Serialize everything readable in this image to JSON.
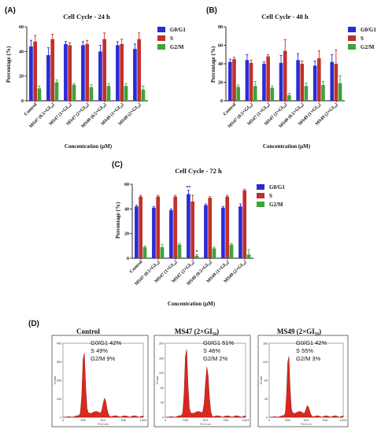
{
  "panel_labels": [
    "(A)",
    "(B)",
    "(C)",
    "(D)"
  ],
  "colors": {
    "G0/G1": "#2b2bd6",
    "S": "#c0312b",
    "G2/M": "#3fa23a",
    "flow_fill": "#d9281f"
  },
  "chart_data": [
    {
      "type": "bar",
      "panel": "(A)",
      "title": "Cell Cycle - 24 h",
      "xlabel": "Concentration (μM)",
      "ylabel": "Percentage (%)",
      "ylim": [
        0,
        60
      ],
      "yticks": [
        0,
        20,
        40,
        60
      ],
      "legend_position": "right",
      "categories": [
        "Control",
        "MS47 (0.5×GI₅₀)",
        "MS47 (1×GI₅₀)",
        "MS47 (2×GI₅₀)",
        "MS49 (0.5×GI₅₀)",
        "MS49 (1×GI₅₀)",
        "MS49 (2×GI₅₀)"
      ],
      "series": [
        {
          "name": "G0/G1",
          "values": [
            44,
            37,
            46,
            45,
            40,
            45,
            42
          ],
          "errors": [
            5,
            6,
            2,
            3,
            5,
            3,
            4
          ]
        },
        {
          "name": "S",
          "values": [
            48,
            50,
            45,
            46,
            50,
            46,
            50
          ],
          "errors": [
            5,
            4,
            2,
            3,
            5,
            4,
            5
          ]
        },
        {
          "name": "G2/M",
          "values": [
            10,
            15,
            13,
            11,
            12,
            12,
            9
          ],
          "errors": [
            2,
            2,
            1,
            2,
            2,
            2,
            3
          ]
        }
      ]
    },
    {
      "type": "bar",
      "panel": "(B)",
      "title": "Cell Cycle - 48 h",
      "xlabel": "Concentration (μM)",
      "ylabel": "Percentage (%)",
      "ylim": [
        0,
        80
      ],
      "yticks": [
        0,
        20,
        40,
        60,
        80
      ],
      "legend_position": "right",
      "categories": [
        "Control",
        "MS47 (0.5×GI₅₀)",
        "MS47 (1×GI₅₀)",
        "MS47 (2×GI₅₀)",
        "MS49 (0.5×GI₅₀)",
        "MS49 (1×GI₅₀)",
        "MS49 (2×GI₅₀)"
      ],
      "series": [
        {
          "name": "G0/G1",
          "values": [
            42,
            44,
            40,
            41,
            44,
            38,
            42
          ],
          "errors": [
            3,
            6,
            2,
            8,
            7,
            5,
            8
          ]
        },
        {
          "name": "S",
          "values": [
            45,
            41,
            48,
            54,
            40,
            46,
            40
          ],
          "errors": [
            2,
            3,
            2,
            12,
            3,
            8,
            15
          ]
        },
        {
          "name": "G2/M",
          "values": [
            15,
            16,
            14,
            6,
            16,
            17,
            19
          ],
          "errors": [
            2,
            5,
            2,
            2,
            3,
            4,
            8
          ]
        }
      ]
    },
    {
      "type": "bar",
      "panel": "(C)",
      "title": "Cell Cycle - 72 h",
      "xlabel": "Concentration (μM)",
      "ylabel": "Percentage (%)",
      "ylim": [
        0,
        60
      ],
      "yticks": [
        0,
        20,
        40,
        60
      ],
      "legend_position": "right",
      "categories": [
        "Control",
        "MS47 (0.5×GI₅₀)",
        "MS47 (1×GI₅₀)",
        "MS47 (2×GI₅₀)",
        "MS49 (0.5×GI₅₀)",
        "MS49 (1×GI₅₀)",
        "MS49 (2×GI₅₀)"
      ],
      "series": [
        {
          "name": "G0/G1",
          "values": [
            42,
            41,
            39,
            52,
            43,
            41,
            42
          ],
          "errors": [
            1,
            1,
            1,
            3,
            1,
            1,
            2
          ]
        },
        {
          "name": "S",
          "values": [
            50,
            50,
            50,
            46,
            49,
            50,
            55
          ],
          "errors": [
            1,
            1,
            1,
            5,
            1,
            1,
            1
          ]
        },
        {
          "name": "G2/M",
          "values": [
            9,
            9,
            11,
            2,
            8,
            11,
            3
          ],
          "errors": [
            1,
            2,
            1,
            1,
            1,
            1,
            4
          ]
        }
      ],
      "annotations": [
        {
          "category": "MS47 (2×GI₅₀)",
          "series": "G0/G1",
          "text": "**"
        },
        {
          "category": "MS47 (2×GI₅₀)",
          "series": "G2/M",
          "text": "*"
        }
      ]
    }
  ],
  "flow": {
    "panel": "(D)",
    "xlabel": "FL3 Lin",
    "ylabel": "Count",
    "xticks": [
      "0",
      "256",
      "512",
      "768",
      "1024"
    ],
    "histograms": [
      {
        "title": "Control",
        "stats": [
          "G0/G1 42%",
          "S 49%",
          "G2/M 9%"
        ],
        "yticks": [
          "0",
          "100",
          "200",
          "300",
          "400"
        ]
      },
      {
        "title": "MS47 (2×GI₅₀)",
        "stats": [
          "G0/G1 51%",
          "S 46%",
          "G2/M 2%"
        ],
        "yticks": [
          "0",
          "40",
          "80",
          "120",
          "160",
          "200"
        ]
      },
      {
        "title": "MS49 (2×GI₅₀)",
        "stats": [
          "G0/G1 42%",
          "S 55%",
          "G2/M 3%"
        ],
        "yticks": [
          "0",
          "40",
          "80",
          "120",
          "160"
        ]
      }
    ]
  }
}
